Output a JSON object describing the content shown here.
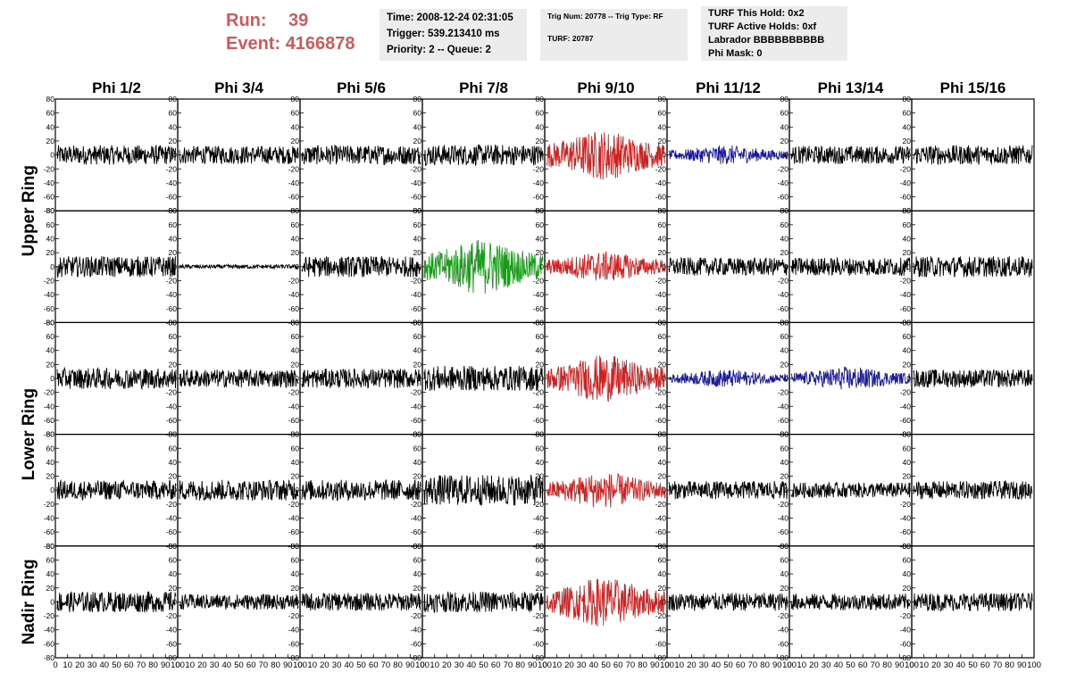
{
  "run": {
    "run_label": "Run:",
    "run_value": "39",
    "event_label": "Event:",
    "event_value": "4166878"
  },
  "info_time": {
    "time": "Time: 2008-12-24 02:31:05",
    "trigger": "Trigger: 539.213410 ms",
    "priority": "Priority: 2 -- Queue: 2"
  },
  "info_trig": {
    "trig": "Trig Num: 20778 -- Trig Type: RF",
    "turf": "TURF: 20787"
  },
  "info_turf": {
    "hold": "TURF This Hold: 0x2",
    "active": "TURF Active Holds: 0xf",
    "labrador": "Labrador BBBBBBBBBB",
    "phi_mask": "Phi Mask: 0"
  },
  "columns": [
    "Phi 1/2",
    "Phi 3/4",
    "Phi 5/6",
    "Phi 7/8",
    "Phi 9/10",
    "Phi 11/12",
    "Phi 13/14",
    "Phi 15/16"
  ],
  "ring_labels": [
    {
      "label": "Upper Ring",
      "rows": [
        0,
        1
      ]
    },
    {
      "label": "Lower Ring",
      "rows": [
        2,
        3
      ]
    },
    {
      "label": "Nadir Ring",
      "rows": [
        4,
        4
      ]
    }
  ],
  "y_ticks": [
    "80",
    "60",
    "40",
    "20",
    "0",
    "-20",
    "-40",
    "-60",
    "-80"
  ],
  "x_ticks": [
    "0",
    "10",
    "20",
    "30",
    "40",
    "50",
    "60",
    "70",
    "80",
    "90",
    "100"
  ],
  "colors": {
    "red": "#d02020",
    "blue": "#1a1a9a",
    "green": "#1a9a1a",
    "black": "#000000",
    "run_text": "#d05a5a",
    "info_bg": "#ececec"
  },
  "waveforms": [
    [
      {
        "color": "black",
        "amp": 14
      },
      {
        "color": "black",
        "amp": 13
      },
      {
        "color": "black",
        "amp": 14
      },
      {
        "color": "black",
        "amp": 15
      },
      {
        "color": "red",
        "amp": 36
      },
      {
        "color": "blue",
        "amp": 14
      },
      {
        "color": "black",
        "amp": 13
      },
      {
        "color": "black",
        "amp": 14
      }
    ],
    [
      {
        "color": "black",
        "amp": 15
      },
      {
        "color": "black",
        "amp": 3
      },
      {
        "color": "black",
        "amp": 15
      },
      {
        "color": "green",
        "amp": 40
      },
      {
        "color": "red",
        "amp": 22
      },
      {
        "color": "black",
        "amp": 13
      },
      {
        "color": "black",
        "amp": 13
      },
      {
        "color": "black",
        "amp": 15
      }
    ],
    [
      {
        "color": "black",
        "amp": 15
      },
      {
        "color": "black",
        "amp": 13
      },
      {
        "color": "black",
        "amp": 14
      },
      {
        "color": "black",
        "amp": 18
      },
      {
        "color": "red",
        "amp": 34
      },
      {
        "color": "blue",
        "amp": 13
      },
      {
        "color": "blue",
        "amp": 17
      },
      {
        "color": "black",
        "amp": 13
      }
    ],
    [
      {
        "color": "black",
        "amp": 14
      },
      {
        "color": "black",
        "amp": 15
      },
      {
        "color": "black",
        "amp": 15
      },
      {
        "color": "black",
        "amp": 22
      },
      {
        "color": "red",
        "amp": 26
      },
      {
        "color": "black",
        "amp": 13
      },
      {
        "color": "black",
        "amp": 11
      },
      {
        "color": "black",
        "amp": 13
      }
    ],
    [
      {
        "color": "black",
        "amp": 15
      },
      {
        "color": "black",
        "amp": 11
      },
      {
        "color": "black",
        "amp": 13
      },
      {
        "color": "black",
        "amp": 15
      },
      {
        "color": "red",
        "amp": 36
      },
      {
        "color": "black",
        "amp": 13
      },
      {
        "color": "black",
        "amp": 12
      },
      {
        "color": "black",
        "amp": 13
      }
    ]
  ]
}
